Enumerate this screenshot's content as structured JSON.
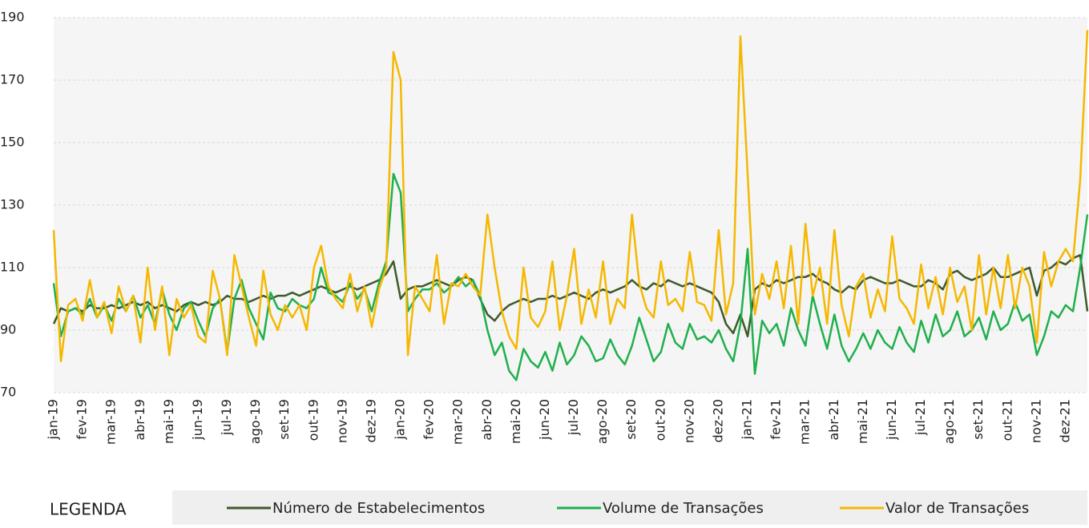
{
  "chart_data": {
    "type": "line",
    "categories": [
      "jan-19",
      null,
      null,
      null,
      "fev-19",
      null,
      null,
      null,
      "mar-19",
      null,
      null,
      null,
      "abr-19",
      null,
      null,
      null,
      "mai-19",
      null,
      null,
      null,
      "jun-19",
      null,
      null,
      null,
      "jul-19",
      null,
      null,
      null,
      "ago-19",
      null,
      null,
      null,
      "set-19",
      null,
      null,
      null,
      "out-19",
      null,
      null,
      null,
      "nov-19",
      null,
      null,
      null,
      "dez-19",
      null,
      null,
      null,
      "jan-20",
      null,
      null,
      null,
      "fev-20",
      null,
      null,
      null,
      "mar-20",
      null,
      null,
      null,
      "abr-20",
      null,
      null,
      null,
      "mai-20",
      null,
      null,
      null,
      "jun-20",
      null,
      null,
      null,
      "jul-20",
      null,
      null,
      null,
      "ago-20",
      null,
      null,
      null,
      "set-20",
      null,
      null,
      null,
      "out-20",
      null,
      null,
      null,
      "nov-20",
      null,
      null,
      null,
      "dez-20",
      null,
      null,
      null,
      "jan-21",
      null,
      null,
      null,
      "fev-21",
      null,
      null,
      null,
      "mar-21",
      null,
      null,
      null,
      "abr-21",
      null,
      null,
      null,
      "mai-21",
      null,
      null,
      null,
      "jun-21",
      null,
      null,
      null,
      "jul-21",
      null,
      null,
      null,
      "ago-21",
      null,
      null,
      null,
      "set-21",
      null,
      null,
      null,
      "out-21",
      null,
      null,
      null,
      "nov-21",
      null,
      null,
      null,
      "dez-21",
      null,
      null,
      null
    ],
    "series": [
      {
        "name": "Número de Estabelecimentos",
        "color": "#3d5a2a",
        "values": [
          92,
          97,
          96,
          97,
          96,
          98,
          97,
          97,
          98,
          97,
          98,
          99,
          98,
          99,
          97,
          98,
          97,
          96,
          98,
          99,
          98,
          99,
          98,
          99,
          101,
          100,
          100,
          99,
          100,
          101,
          100,
          101,
          101,
          102,
          101,
          102,
          103,
          104,
          103,
          102,
          103,
          104,
          103,
          104,
          105,
          106,
          108,
          112,
          100,
          103,
          104,
          104,
          105,
          106,
          105,
          104,
          106,
          107,
          106,
          100,
          95,
          93,
          96,
          98,
          99,
          100,
          99,
          100,
          100,
          101,
          100,
          101,
          102,
          101,
          100,
          102,
          103,
          102,
          103,
          104,
          106,
          104,
          103,
          105,
          104,
          106,
          105,
          104,
          105,
          104,
          103,
          102,
          99,
          92,
          89,
          95,
          88,
          103,
          105,
          104,
          106,
          105,
          106,
          107,
          107,
          108,
          106,
          105,
          103,
          102,
          104,
          103,
          106,
          107,
          106,
          105,
          105,
          106,
          105,
          104,
          104,
          106,
          105,
          103,
          108,
          109,
          107,
          106,
          107,
          108,
          110,
          107,
          107,
          108,
          109,
          110,
          101,
          109,
          110,
          112,
          111,
          113,
          114,
          96
        ]
      },
      {
        "name": "Volume de Transações",
        "color": "#1fb04c",
        "values": [
          105,
          88,
          96,
          97,
          95,
          100,
          94,
          98,
          93,
          100,
          96,
          101,
          94,
          98,
          92,
          103,
          95,
          90,
          97,
          99,
          93,
          88,
          97,
          100,
          83,
          100,
          106,
          97,
          92,
          87,
          102,
          97,
          96,
          100,
          98,
          97,
          100,
          110,
          102,
          101,
          99,
          105,
          100,
          103,
          96,
          105,
          112,
          140,
          134,
          96,
          100,
          103,
          103,
          105,
          102,
          104,
          107,
          104,
          106,
          101,
          90,
          82,
          86,
          77,
          74,
          84,
          80,
          78,
          83,
          77,
          86,
          79,
          82,
          88,
          85,
          80,
          81,
          87,
          82,
          79,
          85,
          94,
          87,
          80,
          83,
          92,
          86,
          84,
          92,
          87,
          88,
          86,
          90,
          84,
          80,
          92,
          116,
          76,
          93,
          89,
          92,
          85,
          97,
          90,
          85,
          101,
          92,
          84,
          95,
          85,
          80,
          84,
          89,
          84,
          90,
          86,
          84,
          91,
          86,
          83,
          93,
          86,
          95,
          88,
          90,
          96,
          88,
          90,
          94,
          87,
          96,
          90,
          92,
          99,
          93,
          95,
          82,
          88,
          96,
          94,
          98,
          96,
          110,
          127
        ]
      },
      {
        "name": "Valor de Transações",
        "color": "#f5b800",
        "values": [
          122,
          80,
          98,
          100,
          93,
          106,
          94,
          99,
          89,
          104,
          96,
          101,
          86,
          110,
          90,
          104,
          82,
          100,
          94,
          98,
          88,
          86,
          109,
          100,
          82,
          114,
          104,
          94,
          85,
          109,
          95,
          90,
          98,
          94,
          98,
          90,
          110,
          117,
          104,
          100,
          97,
          108,
          96,
          104,
          91,
          103,
          110,
          179,
          170,
          82,
          104,
          100,
          96,
          114,
          92,
          105,
          104,
          108,
          104,
          101,
          127,
          110,
          96,
          88,
          84,
          110,
          94,
          91,
          96,
          112,
          90,
          101,
          116,
          92,
          103,
          94,
          112,
          92,
          100,
          97,
          127,
          105,
          97,
          94,
          112,
          98,
          100,
          96,
          115,
          99,
          98,
          93,
          122,
          95,
          105,
          184,
          140,
          95,
          108,
          100,
          112,
          97,
          117,
          92,
          124,
          101,
          110,
          92,
          122,
          98,
          88,
          104,
          108,
          94,
          103,
          96,
          120,
          100,
          97,
          92,
          111,
          97,
          107,
          95,
          110,
          99,
          104,
          90,
          114,
          95,
          110,
          97,
          114,
          97,
          110,
          104,
          86,
          115,
          104,
          112,
          116,
          112,
          138,
          186
        ]
      }
    ],
    "ylim": [
      70,
      190
    ],
    "yticks": [
      70,
      90,
      110,
      130,
      150,
      170,
      190
    ],
    "grid": true,
    "legend_title": "LEGENDA"
  }
}
